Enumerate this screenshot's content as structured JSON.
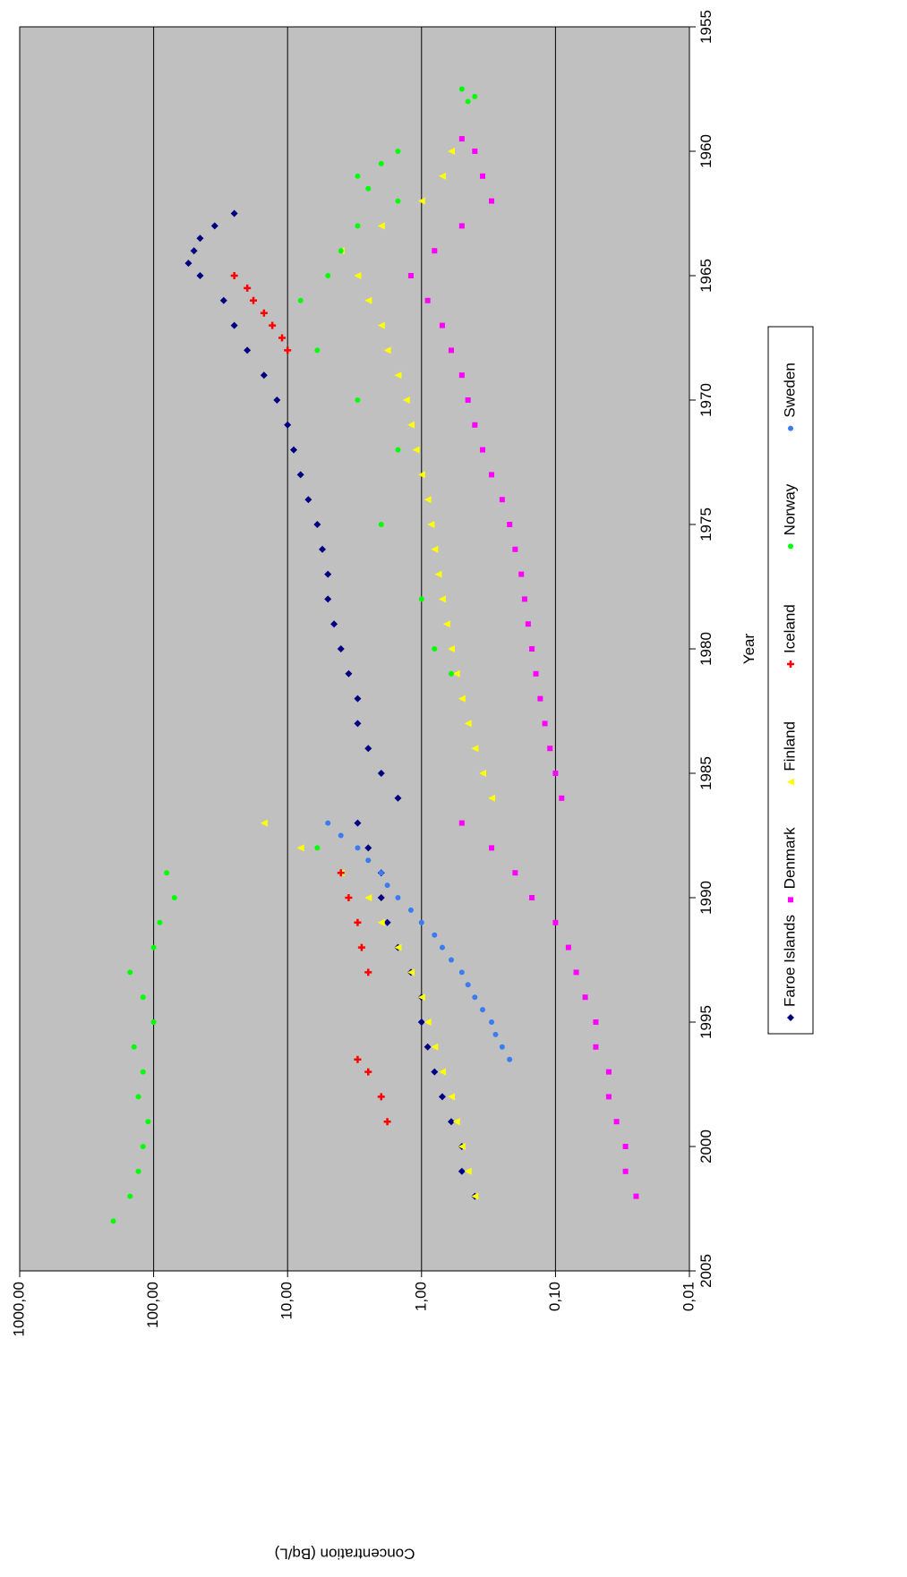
{
  "chart_data": {
    "type": "scatter",
    "orientation_note": "",
    "xlabel": "Year",
    "ylabel": "Concentration (Bq/L)",
    "xlim": [
      1955,
      2005
    ],
    "ylim": [
      0.01,
      1000
    ],
    "y_scale": "log",
    "x_ticks": [
      "1955",
      "1960",
      "1965",
      "1970",
      "1975",
      "1980",
      "1985",
      "1990",
      "1995",
      "2000",
      "2005"
    ],
    "y_ticks": [
      "0,01",
      "0,10",
      "1,00",
      "10,00",
      "100,00",
      "1000,00"
    ],
    "grid": true,
    "legend_position": "right",
    "colors": {
      "plot_bg": "#c0c0c0",
      "Faroe Islands": "#000080",
      "Denmark": "#ff00ff",
      "Finland": "#ffff00",
      "Iceland": "#ff0000",
      "Norway": "#00ff00",
      "Sweden": "#3a7cf0"
    },
    "series": [
      {
        "name": "Faroe Islands",
        "marker": "diamond",
        "points": [
          [
            1962.5,
            25
          ],
          [
            1963,
            35
          ],
          [
            1963.5,
            45
          ],
          [
            1964,
            50
          ],
          [
            1964.5,
            55
          ],
          [
            1965,
            45
          ],
          [
            1966,
            30
          ],
          [
            1967,
            25
          ],
          [
            1968,
            20
          ],
          [
            1969,
            15
          ],
          [
            1970,
            12
          ],
          [
            1971,
            10
          ],
          [
            1972,
            9
          ],
          [
            1973,
            8
          ],
          [
            1974,
            7
          ],
          [
            1975,
            6
          ],
          [
            1976,
            5.5
          ],
          [
            1977,
            5
          ],
          [
            1978,
            5
          ],
          [
            1979,
            4.5
          ],
          [
            1980,
            4
          ],
          [
            1981,
            3.5
          ],
          [
            1982,
            3
          ],
          [
            1983,
            3
          ],
          [
            1984,
            2.5
          ],
          [
            1985,
            2
          ],
          [
            1986,
            1.5
          ],
          [
            1987,
            3
          ],
          [
            1988,
            2.5
          ],
          [
            1989,
            2
          ],
          [
            1990,
            2
          ],
          [
            1991,
            1.8
          ],
          [
            1992,
            1.5
          ],
          [
            1993,
            1.2
          ],
          [
            1994,
            1
          ],
          [
            1995,
            1
          ],
          [
            1996,
            0.9
          ],
          [
            1997,
            0.8
          ],
          [
            1998,
            0.7
          ],
          [
            1999,
            0.6
          ],
          [
            2000,
            0.5
          ],
          [
            2001,
            0.5
          ],
          [
            2002,
            0.4
          ]
        ]
      },
      {
        "name": "Denmark",
        "marker": "square",
        "points": [
          [
            1959.5,
            0.5
          ],
          [
            1960,
            0.4
          ],
          [
            1961,
            0.35
          ],
          [
            1962,
            0.3
          ],
          [
            1963,
            0.5
          ],
          [
            1964,
            0.8
          ],
          [
            1965,
            1.2
          ],
          [
            1966,
            0.9
          ],
          [
            1967,
            0.7
          ],
          [
            1968,
            0.6
          ],
          [
            1969,
            0.5
          ],
          [
            1970,
            0.45
          ],
          [
            1971,
            0.4
          ],
          [
            1972,
            0.35
          ],
          [
            1973,
            0.3
          ],
          [
            1974,
            0.25
          ],
          [
            1975,
            0.22
          ],
          [
            1976,
            0.2
          ],
          [
            1977,
            0.18
          ],
          [
            1978,
            0.17
          ],
          [
            1979,
            0.16
          ],
          [
            1980,
            0.15
          ],
          [
            1981,
            0.14
          ],
          [
            1982,
            0.13
          ],
          [
            1983,
            0.12
          ],
          [
            1984,
            0.11
          ],
          [
            1985,
            0.1
          ],
          [
            1986,
            0.09
          ],
          [
            1987,
            0.5
          ],
          [
            1988,
            0.3
          ],
          [
            1989,
            0.2
          ],
          [
            1990,
            0.15
          ],
          [
            1991,
            0.1
          ],
          [
            1992,
            0.08
          ],
          [
            1993,
            0.07
          ],
          [
            1994,
            0.06
          ],
          [
            1995,
            0.05
          ],
          [
            1996,
            0.05
          ],
          [
            1997,
            0.04
          ],
          [
            1998,
            0.04
          ],
          [
            1999,
            0.035
          ],
          [
            2000,
            0.03
          ],
          [
            2001,
            0.03
          ],
          [
            2002,
            0.025
          ]
        ]
      },
      {
        "name": "Finland",
        "marker": "triangle",
        "points": [
          [
            1960,
            0.6
          ],
          [
            1961,
            0.7
          ],
          [
            1962,
            1
          ],
          [
            1963,
            2
          ],
          [
            1964,
            4
          ],
          [
            1965,
            3
          ],
          [
            1966,
            2.5
          ],
          [
            1967,
            2
          ],
          [
            1968,
            1.8
          ],
          [
            1969,
            1.5
          ],
          [
            1970,
            1.3
          ],
          [
            1971,
            1.2
          ],
          [
            1972,
            1.1
          ],
          [
            1973,
            1
          ],
          [
            1974,
            0.9
          ],
          [
            1975,
            0.85
          ],
          [
            1976,
            0.8
          ],
          [
            1977,
            0.75
          ],
          [
            1978,
            0.7
          ],
          [
            1979,
            0.65
          ],
          [
            1980,
            0.6
          ],
          [
            1981,
            0.55
          ],
          [
            1982,
            0.5
          ],
          [
            1983,
            0.45
          ],
          [
            1984,
            0.4
          ],
          [
            1985,
            0.35
          ],
          [
            1986,
            0.3
          ],
          [
            1987,
            15
          ],
          [
            1988,
            8
          ],
          [
            1989,
            4
          ],
          [
            1990,
            2.5
          ],
          [
            1991,
            2
          ],
          [
            1992,
            1.5
          ],
          [
            1993,
            1.2
          ],
          [
            1994,
            1
          ],
          [
            1995,
            0.9
          ],
          [
            1996,
            0.8
          ],
          [
            1997,
            0.7
          ],
          [
            1998,
            0.6
          ],
          [
            1999,
            0.55
          ],
          [
            2000,
            0.5
          ],
          [
            2001,
            0.45
          ],
          [
            2002,
            0.4
          ]
        ]
      },
      {
        "name": "Iceland",
        "marker": "cross",
        "points": [
          [
            1965,
            25
          ],
          [
            1965.5,
            20
          ],
          [
            1966,
            18
          ],
          [
            1966.5,
            15
          ],
          [
            1967,
            13
          ],
          [
            1967.5,
            11
          ],
          [
            1968,
            10
          ],
          [
            1989,
            4
          ],
          [
            1990,
            3.5
          ],
          [
            1991,
            3
          ],
          [
            1992,
            2.8
          ],
          [
            1993,
            2.5
          ],
          [
            1996.5,
            3
          ],
          [
            1997,
            2.5
          ],
          [
            1998,
            2
          ],
          [
            1999,
            1.8
          ]
        ]
      },
      {
        "name": "Norway",
        "marker": "circle",
        "points": [
          [
            1957.5,
            0.5
          ],
          [
            1957.8,
            0.4
          ],
          [
            1958,
            0.45
          ],
          [
            1960,
            1.5
          ],
          [
            1960.5,
            2
          ],
          [
            1961,
            3
          ],
          [
            1961.5,
            2.5
          ],
          [
            1962,
            1.5
          ],
          [
            1963,
            3
          ],
          [
            1964,
            4
          ],
          [
            1965,
            5
          ],
          [
            1966,
            8
          ],
          [
            1968,
            6
          ],
          [
            1970,
            3
          ],
          [
            1972,
            1.5
          ],
          [
            1975,
            2
          ],
          [
            1978,
            1
          ],
          [
            1980,
            0.8
          ],
          [
            1981,
            0.6
          ],
          [
            1988,
            6
          ],
          [
            1989,
            80
          ],
          [
            1990,
            70
          ],
          [
            1991,
            90
          ],
          [
            1992,
            100
          ],
          [
            1993,
            150
          ],
          [
            1994,
            120
          ],
          [
            1995,
            100
          ],
          [
            1996,
            140
          ],
          [
            1997,
            120
          ],
          [
            1998,
            130
          ],
          [
            1999,
            110
          ],
          [
            2000,
            120
          ],
          [
            2001,
            130
          ],
          [
            2002,
            150
          ],
          [
            2003,
            200
          ]
        ]
      },
      {
        "name": "Sweden",
        "marker": "circle",
        "points": [
          [
            1987,
            5
          ],
          [
            1987.5,
            4
          ],
          [
            1988,
            3
          ],
          [
            1988.5,
            2.5
          ],
          [
            1989,
            2
          ],
          [
            1989.5,
            1.8
          ],
          [
            1990,
            1.5
          ],
          [
            1990.5,
            1.2
          ],
          [
            1991,
            1
          ],
          [
            1991.5,
            0.8
          ],
          [
            1992,
            0.7
          ],
          [
            1992.5,
            0.6
          ],
          [
            1993,
            0.5
          ],
          [
            1993.5,
            0.45
          ],
          [
            1994,
            0.4
          ],
          [
            1994.5,
            0.35
          ],
          [
            1995,
            0.3
          ],
          [
            1995.5,
            0.28
          ],
          [
            1996,
            0.25
          ],
          [
            1996.5,
            0.22
          ]
        ]
      }
    ]
  }
}
